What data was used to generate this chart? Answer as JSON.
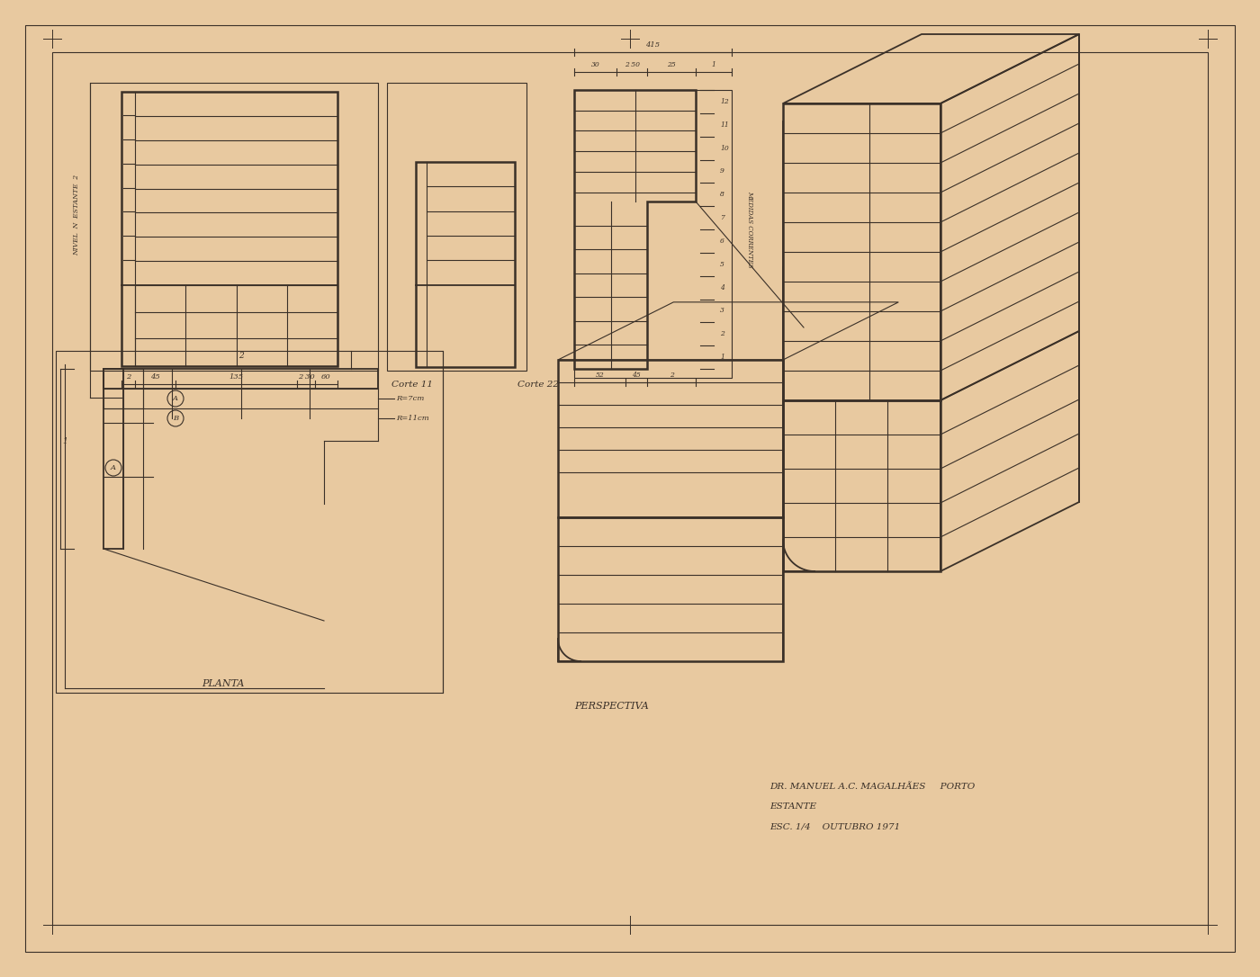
{
  "bg_color": "#e8c9a0",
  "line_color": "#3a3028",
  "title_text1": "DR. MANUEL A.C. MAGALHÃES     PORTO",
  "title_text2": "ESTANTE",
  "title_text3": "ESC. 1/4    OUTUBRO 1971",
  "label_corte11": "Corte 11",
  "label_corte22": "Corte 22",
  "label_planta": "PLANTA",
  "label_perspectiva": "PERSPECTIVA",
  "label_nivel": "NIVEL  N  ESTANTE  2"
}
